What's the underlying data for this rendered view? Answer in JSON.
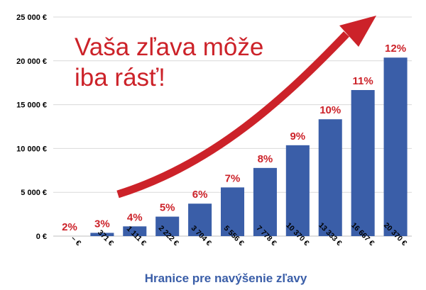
{
  "chart_data": {
    "type": "bar",
    "categories": [
      "– €",
      "371 €",
      "1 111 €",
      "2 222 €",
      "3 704 €",
      "5 556 €",
      "7 778 €",
      "10 370 €",
      "13 333 €",
      "16 667 €",
      "20 370 €"
    ],
    "values": [
      0,
      371,
      1111,
      2222,
      3704,
      5556,
      7778,
      10370,
      13333,
      16667,
      20370
    ],
    "data_labels": [
      "2%",
      "3%",
      "4%",
      "5%",
      "6%",
      "7%",
      "8%",
      "9%",
      "10%",
      "11%",
      "12%"
    ],
    "title": "",
    "xlabel": "Hranice pre navýšenie zľavy",
    "ylabel": "",
    "ylim": [
      0,
      25000
    ],
    "yticks": [
      "0 €",
      "5 000 €",
      "10 000 €",
      "15 000 €",
      "20 000 €",
      "25 000 €"
    ],
    "grid": true,
    "annotation": {
      "line1": "Vaša zľava môže",
      "line2": "iba rásť!"
    },
    "colors": {
      "bar": "#3a5ea8",
      "label": "#cc2229",
      "arrow": "#cc2229",
      "grid": "#d9d9d9",
      "xlabel": "#3a5ea8"
    }
  }
}
